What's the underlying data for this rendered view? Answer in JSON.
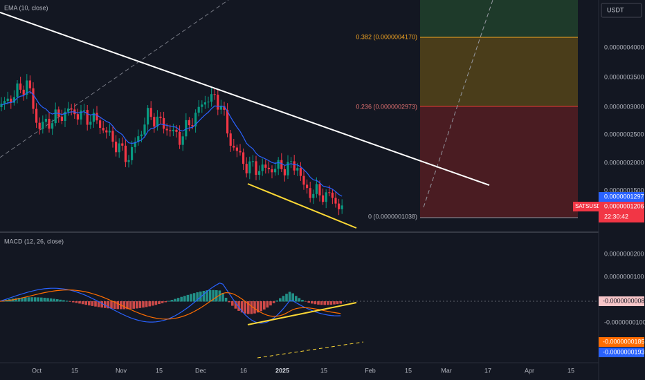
{
  "indicators": {
    "ema": "EMA (10, close)",
    "macd": "MACD (12, 26, close)"
  },
  "currency": "USDT",
  "price_axis": [
    "0.0000004000",
    "0.0000003500",
    "0.0000003000",
    "0.0000002500",
    "0.0000002000",
    "0.0000001500"
  ],
  "price_tags": {
    "ema": "0.0000001297",
    "symbol": "SATSUSDT",
    "last": "0.0000001206",
    "countdown": "22:30:42"
  },
  "fib": [
    "0.382 (0.0000004170)",
    "0.236 (0.0000002973)",
    "0 (0.0000001038)"
  ],
  "macd_axis": [
    "0.0000000200",
    "0.0000000100",
    "-0.0000000100"
  ],
  "macd_tags": {
    "histogram": "-0.0000000008",
    "signal": "-0.0000000185",
    "macd": "-0.0000000193"
  },
  "time_axis": [
    "Oct",
    "15",
    "Nov",
    "15",
    "Dec",
    "16",
    "2025",
    "15",
    "Feb",
    "15",
    "Mar",
    "17",
    "Apr",
    "15"
  ]
}
